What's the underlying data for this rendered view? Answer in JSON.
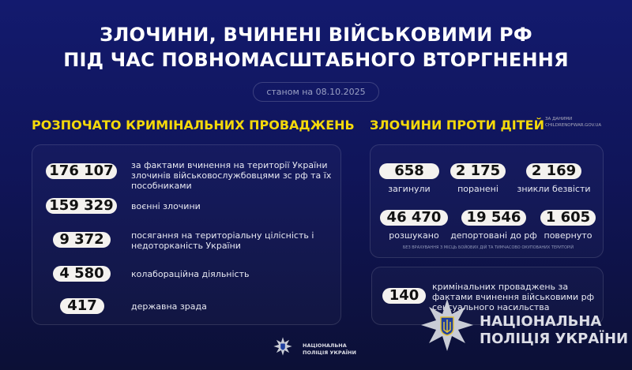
{
  "header": {
    "title_line1": "ЗЛОЧИНИ, ВЧИНЕНІ ВІЙСЬКОВИМИ РФ",
    "title_line2": "ПІД ЧАС ПОВНОМАСШТАБНОГО ВТОРГНЕННЯ",
    "date": "станом на 08.10.2025"
  },
  "criminal": {
    "title": "РОЗПОЧАТО КРИМІНАЛЬНИХ ПРОВАДЖЕНЬ",
    "items": [
      {
        "value": "176 107",
        "text": "за фактами вчинення на території України злочинів військовослужбовцями зс рф та їх пособниками"
      },
      {
        "value": "159 329",
        "text": "воєнні злочини"
      },
      {
        "value": "9 372",
        "text": "посягання на територіальну цілісність і недоторканість України"
      },
      {
        "value": "4 580",
        "text": "колабораційна діяльність"
      },
      {
        "value": "417",
        "text": "державна зрада"
      }
    ]
  },
  "children": {
    "title": "ЗЛОЧИНИ ПРОТИ ДІТЕЙ",
    "source_line1": "за даними",
    "source_line2": "CHILDRENOFWAR.GOV.UA",
    "items": [
      {
        "value": "658",
        "label": "загинули"
      },
      {
        "value": "2 175",
        "label": "поранені"
      },
      {
        "value": "2 169",
        "label": "зникли безвісти"
      },
      {
        "value": "46 470",
        "label": "розшукано"
      },
      {
        "value": "19 546",
        "label": "депортовані до рф"
      },
      {
        "value": "1 605",
        "label": "повернуто"
      }
    ],
    "footnote": "без врахування з місць бойових дій та тимчасово окупованих територій"
  },
  "sexual": {
    "value": "140",
    "text": "кримінальних проваджень за фактами вчинення військовими рф сексуального насильства"
  },
  "logo": {
    "line1": "НАЦІОНАЛЬНА",
    "line2": "ПОЛІЦІЯ УКРАЇНИ"
  },
  "colors": {
    "accent": "#f5d90a",
    "background": "#10155a"
  }
}
